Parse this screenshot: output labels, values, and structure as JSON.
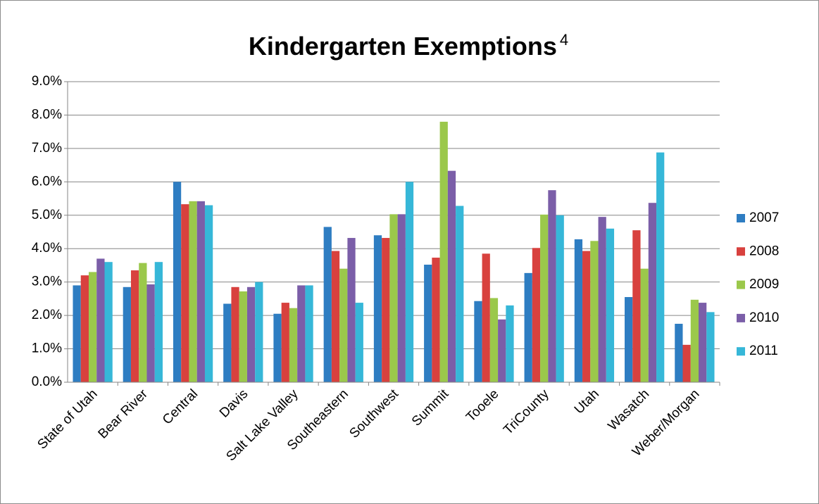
{
  "chart_data": {
    "type": "bar",
    "title": "Kindergarten Exemptions",
    "title_superscript": "4",
    "categories": [
      "State of Utah",
      "Bear River",
      "Central",
      "Davis",
      "Salt Lake Valley",
      "Southeastern",
      "Southwest",
      "Summit",
      "Tooele",
      "TriCounty",
      "Utah",
      "Wasatch",
      "Weber/Morgan"
    ],
    "series": [
      {
        "name": "2007",
        "color": "#2e7dc2",
        "values": [
          2.9,
          2.85,
          6.0,
          2.35,
          2.05,
          4.65,
          4.4,
          3.52,
          2.43,
          3.27,
          4.28,
          2.55,
          1.75
        ]
      },
      {
        "name": "2008",
        "color": "#d8413e",
        "values": [
          3.2,
          3.35,
          5.33,
          2.85,
          2.38,
          3.93,
          4.32,
          3.73,
          3.85,
          4.02,
          3.93,
          4.55,
          1.12
        ]
      },
      {
        "name": "2009",
        "color": "#9bc84b",
        "values": [
          3.3,
          3.57,
          5.42,
          2.72,
          2.22,
          3.4,
          5.03,
          7.8,
          2.52,
          5.02,
          4.23,
          3.4,
          2.47
        ]
      },
      {
        "name": "2010",
        "color": "#7b5ea8",
        "values": [
          3.7,
          2.93,
          5.42,
          2.85,
          2.9,
          4.32,
          5.03,
          6.33,
          1.88,
          5.75,
          4.95,
          5.37,
          2.38
        ]
      },
      {
        "name": "2011",
        "color": "#36b7d8",
        "values": [
          3.6,
          3.6,
          5.3,
          3.0,
          2.9,
          2.38,
          6.0,
          5.28,
          2.3,
          5.0,
          4.6,
          6.88,
          2.1
        ]
      }
    ],
    "ylim": [
      0,
      9
    ],
    "yticks": [
      {
        "value": 0,
        "label": "0.0%"
      },
      {
        "value": 1,
        "label": "1.0%"
      },
      {
        "value": 2,
        "label": "2.0%"
      },
      {
        "value": 3,
        "label": "3.0%"
      },
      {
        "value": 4,
        "label": "4.0%"
      },
      {
        "value": 5,
        "label": "5.0%"
      },
      {
        "value": 6,
        "label": "6.0%"
      },
      {
        "value": 7,
        "label": "7.0%"
      },
      {
        "value": 8,
        "label": "8.0%"
      },
      {
        "value": 9,
        "label": "9.0%"
      }
    ],
    "grid": true,
    "legend": "right"
  }
}
